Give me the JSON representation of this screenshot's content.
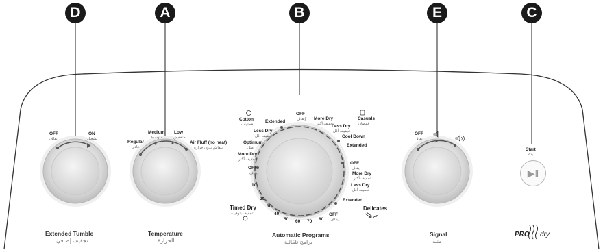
{
  "badges": {
    "d": "D",
    "a": "A",
    "b": "B",
    "e": "E",
    "c": "C"
  },
  "extended_tumble": {
    "off": "OFF",
    "off_ar": "إيقاف",
    "on": "ON",
    "on_ar": "تشغيل",
    "title": "Extended Tumble",
    "title_ar": "تجفيف إضافي"
  },
  "temperature": {
    "regular": "Regular",
    "regular_ar": "عادي",
    "medium": "Medium",
    "medium_ar": "متوسط",
    "low": "Low",
    "low_ar": "منخفض",
    "air_fluff": "Air Fluff (no heat)",
    "air_fluff_ar": "انتفاش بدون حرارة",
    "title": "Temperature",
    "title_ar": "الحرارة"
  },
  "programs": {
    "cotton": "Cotton",
    "cotton_ar": "قطنيات",
    "extended_1": "Extended",
    "off_top": "OFF",
    "off_top_ar": "إيقاف",
    "more_dry_1": "More Dry",
    "more_dry_1_ar": "تجفيف أكثر",
    "casuals": "Casuals",
    "casuals_ar": "قمصان",
    "less_dry_1": "Less Dry",
    "less_dry_1_ar": "تجفيف أقل",
    "less_dry_r": "Less Dry",
    "less_dry_r_ar": "تجفيف أقل",
    "cool_down": "Cool Down",
    "extended_r": "Extended",
    "optimum": "Optimum",
    "optimum_ar": "أمثل",
    "more_dry_l": "More Dry",
    "more_dry_l_ar": "تجفيف أكثر",
    "off_l": "OFF",
    "off_l_ar": "إيقاف",
    "off_r": "OFF",
    "off_r_ar": "إيقاف",
    "more_dry_r": "More Dry",
    "more_dry_r_ar": "تجفيف أكثر",
    "less_dry_r2": "Less Dry",
    "less_dry_r2_ar": "تجفيف أقل",
    "extended_r2": "Extended",
    "delicates": "Delicates",
    "delicates_ar": "حرير",
    "off_b": "OFF",
    "off_b_ar": "إيقاف",
    "timed_dry": "Timed Dry",
    "timed_dry_ar": "تجفيف بتوقيت",
    "t10": "10",
    "t20": "20",
    "t30": "30",
    "t40": "40",
    "t50": "50",
    "t60": "60",
    "t70": "70",
    "t80": "80",
    "title": "Automatic Programs",
    "title_ar": "برامج تلقائية"
  },
  "signal": {
    "off": "OFF",
    "off_ar": "إيقاف",
    "title": "Signal",
    "title_ar": "منبه"
  },
  "start": {
    "label": "Start",
    "label_ar": "بدء",
    "icon": "play-pause-icon"
  },
  "brand": {
    "pro": "PRO",
    "dry": "dry"
  }
}
